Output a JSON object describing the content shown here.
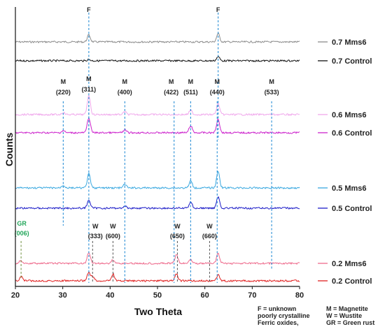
{
  "chart_data": {
    "type": "line",
    "xlabel": "Two Theta",
    "ylabel": "Counts",
    "xlim": [
      20,
      80
    ],
    "xticks": [
      20,
      30,
      40,
      50,
      60,
      70,
      80
    ],
    "grid": false,
    "legend_position": "right",
    "series": [
      {
        "name": "0.7 Mms6",
        "color": "#8c8c8c",
        "peaks": [
          {
            "x": 35.5,
            "h": 10
          },
          {
            "x": 62.8,
            "h": 12
          }
        ]
      },
      {
        "name": "0.7 Control",
        "color": "#111111",
        "peaks": [
          {
            "x": 62.8,
            "h": 6
          },
          {
            "x": 35.5,
            "h": 2
          }
        ]
      },
      {
        "name": "0.6 Mms6",
        "color": "#f0a8ec",
        "peaks": [
          {
            "x": 35.5,
            "h": 28
          },
          {
            "x": 62.8,
            "h": 16
          },
          {
            "x": 57.0,
            "h": 6
          },
          {
            "x": 43.1,
            "h": 4
          },
          {
            "x": 30.1,
            "h": 3
          }
        ]
      },
      {
        "name": "0.6 Control",
        "color": "#cc22cc",
        "peaks": [
          {
            "x": 35.5,
            "h": 22
          },
          {
            "x": 62.8,
            "h": 20
          },
          {
            "x": 57.0,
            "h": 10
          },
          {
            "x": 43.1,
            "h": 4
          },
          {
            "x": 30.1,
            "h": 3
          }
        ]
      },
      {
        "name": "0.5 Mms6",
        "color": "#39a8e0",
        "peaks": [
          {
            "x": 35.5,
            "h": 20
          },
          {
            "x": 62.8,
            "h": 24
          },
          {
            "x": 57.0,
            "h": 10
          },
          {
            "x": 43.1,
            "h": 5
          },
          {
            "x": 30.1,
            "h": 4
          }
        ]
      },
      {
        "name": "0.5 Control",
        "color": "#1c1cc8",
        "peaks": [
          {
            "x": 35.5,
            "h": 12
          },
          {
            "x": 62.8,
            "h": 16
          },
          {
            "x": 57.0,
            "h": 9
          },
          {
            "x": 43.1,
            "h": 3
          }
        ]
      },
      {
        "name": "0.2 Mms6",
        "color": "#ee6a8c",
        "peaks": [
          {
            "x": 35.5,
            "h": 16
          },
          {
            "x": 62.8,
            "h": 14
          },
          {
            "x": 54.0,
            "h": 12
          },
          {
            "x": 57.0,
            "h": 6
          },
          {
            "x": 40.6,
            "h": 5
          },
          {
            "x": 21.2,
            "h": 4
          }
        ]
      },
      {
        "name": "0.2 Control",
        "color": "#e02020",
        "peaks": [
          {
            "x": 35.5,
            "h": 12
          },
          {
            "x": 36.3,
            "h": 6
          },
          {
            "x": 40.6,
            "h": 10
          },
          {
            "x": 54.0,
            "h": 10
          },
          {
            "x": 62.8,
            "h": 8
          },
          {
            "x": 21.2,
            "h": 6
          }
        ]
      }
    ],
    "annotations": {
      "F": [
        {
          "letter": "F",
          "x": 35.5
        },
        {
          "letter": "F",
          "x": 62.8
        }
      ],
      "M": [
        {
          "letter": "M",
          "hkl": "(220)",
          "x": 30.1
        },
        {
          "letter": "M",
          "hkl": "(311)",
          "x": 35.5
        },
        {
          "letter": "M",
          "hkl": "(400)",
          "x": 43.1
        },
        {
          "letter": "M",
          "hkl": "(422)",
          "x": 53.5
        },
        {
          "letter": "M",
          "hkl": "(511)",
          "x": 57.0
        },
        {
          "letter": "M",
          "hkl": "(440)",
          "x": 62.6
        },
        {
          "letter": "M",
          "hkl": "(533)",
          "x": 74.1
        }
      ],
      "W": [
        {
          "letter": "W",
          "hkl": "(333)",
          "x": 36.3
        },
        {
          "letter": "W",
          "hkl": "(600)",
          "x": 40.6
        },
        {
          "letter": "W",
          "hkl": "(650)",
          "x": 54.2
        },
        {
          "letter": "W",
          "hkl": "(660)",
          "x": 61.0
        }
      ],
      "GR": [
        {
          "letter": "GR",
          "hkl": "(006)",
          "x": 21.2
        }
      ]
    },
    "key": {
      "left": [
        "F = unknown",
        "poorly crystalline",
        "Ferric oxides,"
      ],
      "right": [
        "M = Magnetite",
        "W = Wustite",
        "GR = Green rust"
      ]
    }
  }
}
